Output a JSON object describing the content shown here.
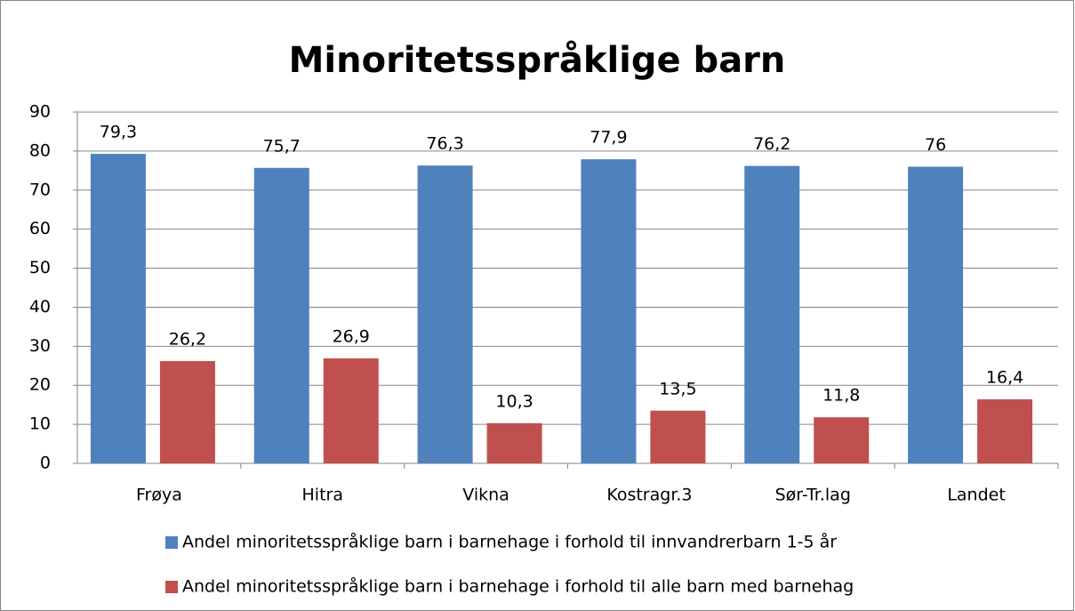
{
  "chart_data": {
    "type": "bar",
    "title": "Minoritetsspråklige barn",
    "categories": [
      "Frøya",
      "Hitra",
      "Vikna",
      "Kostragr.3",
      "Sør-Tr.lag",
      "Landet"
    ],
    "series": [
      {
        "name": "Andel minoritetsspråklige barn i barnehage i forhold til innvandrerbarn 1-5 år",
        "color": "#4f81bd",
        "values": [
          79.3,
          75.7,
          76.3,
          77.9,
          76.2,
          76
        ],
        "value_labels": [
          "79,3",
          "75,7",
          "76,3",
          "77,9",
          "76,2",
          "76"
        ]
      },
      {
        "name": "Andel minoritetsspråklige barn i barnehage i forhold til alle barn med barnehag",
        "color": "#c0504d",
        "values": [
          26.2,
          26.9,
          10.3,
          13.5,
          11.8,
          16.4
        ],
        "value_labels": [
          "26,2",
          "26,9",
          "10,3",
          "13,5",
          "11,8",
          "16,4"
        ]
      }
    ],
    "ylim": [
      0,
      90
    ],
    "yticks": [
      0,
      10,
      20,
      30,
      40,
      50,
      60,
      70,
      80,
      90
    ],
    "grid": true,
    "legend": "bottom"
  }
}
